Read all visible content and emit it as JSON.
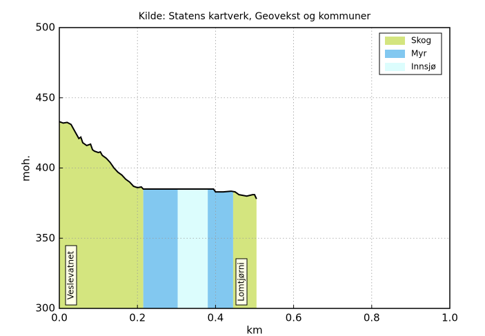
{
  "chart_data": {
    "type": "profile",
    "title": "Kilde: Statens kartverk, Geovekst og kommuner",
    "xlabel": "km",
    "ylabel": "moh.",
    "xlim": [
      0,
      1
    ],
    "ylim": [
      300,
      500
    ],
    "xticks": [
      {
        "value": 0,
        "label": "0.0"
      },
      0.2,
      0.4,
      0.6,
      0.8,
      {
        "value": 1,
        "label": "1.0"
      }
    ],
    "yticks": [
      300,
      350,
      400,
      450,
      500
    ],
    "grid": true,
    "legend": "upper right",
    "profile": {
      "x": [
        0,
        0.01,
        0.02,
        0.03,
        0.04,
        0.05,
        0.055,
        0.06,
        0.07,
        0.08,
        0.085,
        0.09,
        0.1,
        0.105,
        0.11,
        0.12,
        0.13,
        0.14,
        0.15,
        0.16,
        0.17,
        0.18,
        0.19,
        0.2,
        0.21,
        0.215,
        0.3,
        0.39,
        0.395,
        0.4,
        0.42,
        0.44,
        0.45,
        0.46,
        0.48,
        0.495,
        0.5,
        0.505
      ],
      "y": [
        433,
        432,
        432.5,
        431,
        426,
        421,
        422,
        418,
        416,
        417,
        413,
        412,
        411,
        411.5,
        409,
        407,
        404,
        400,
        397,
        395,
        392,
        390,
        387,
        386,
        386.5,
        385,
        385,
        385,
        385,
        383,
        383,
        383.5,
        383,
        381,
        380,
        381,
        381,
        378
      ]
    },
    "series": [
      {
        "name": "Skog",
        "color": "#d4e57f",
        "ranges": [
          [
            0,
            0.215
          ],
          [
            0.445,
            0.505
          ]
        ]
      },
      {
        "name": "Myr",
        "color": "#82c8f0",
        "ranges": [
          [
            0.215,
            0.303
          ],
          [
            0.38,
            0.445
          ]
        ]
      },
      {
        "name": "Innsjø",
        "color": "#dcfdfd",
        "ranges": [
          [
            0.303,
            0.38
          ]
        ]
      }
    ],
    "annotations": [
      "Veslevatnet",
      "Lomtjørni"
    ]
  }
}
